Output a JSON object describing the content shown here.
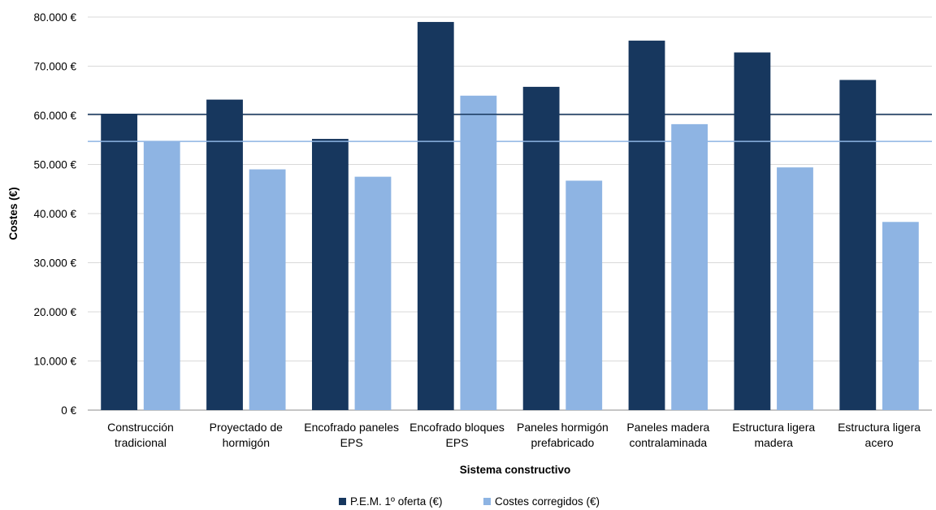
{
  "chart_data": {
    "type": "bar",
    "categories": [
      [
        "Construcción",
        "tradicional"
      ],
      [
        "Proyectado de",
        "hormigón"
      ],
      [
        "Encofrado paneles",
        "EPS"
      ],
      [
        "Encofrado bloques",
        "EPS"
      ],
      [
        "Paneles hormigón",
        "prefabricado"
      ],
      [
        "Paneles madera",
        "contralaminada"
      ],
      [
        "Estructura ligera",
        "madera"
      ],
      [
        "Estructura ligera",
        "acero"
      ]
    ],
    "series": [
      {
        "name": "P.E.M. 1º oferta (€)",
        "color": "#17375e",
        "values": [
          60200,
          63200,
          55200,
          79000,
          65800,
          75200,
          72800,
          67200
        ]
      },
      {
        "name": "Costes corregidos (€)",
        "color": "#8eb4e3",
        "values": [
          54700,
          49000,
          47500,
          64000,
          46700,
          58200,
          49400,
          38300
        ]
      }
    ],
    "reference_lines": [
      {
        "value": 60200,
        "color": "#17375e"
      },
      {
        "value": 54700,
        "color": "#8eb4e3"
      }
    ],
    "xlabel": "Sistema constructivo",
    "ylabel": "Costes (€)",
    "ylim": [
      0,
      80000
    ],
    "yticks": [
      0,
      10000,
      20000,
      30000,
      40000,
      50000,
      60000,
      70000,
      80000
    ],
    "ytick_labels": [
      "0 €",
      "10.000 €",
      "20.000 €",
      "30.000 €",
      "40.000 €",
      "50.000 €",
      "60.000 €",
      "70.000 €",
      "80.000 €"
    ],
    "grid": true,
    "legend_position": "bottom"
  }
}
